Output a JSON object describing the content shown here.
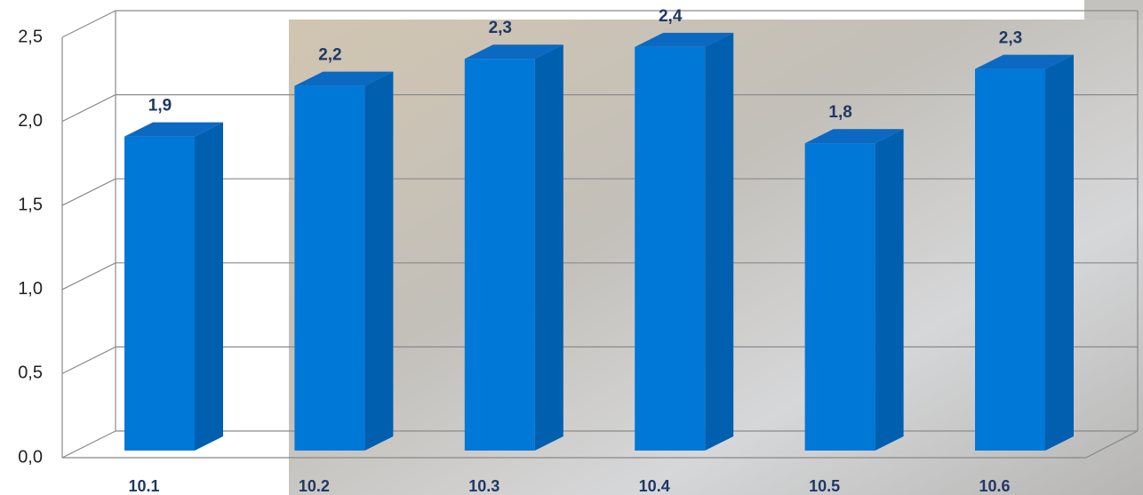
{
  "chart_data": {
    "type": "bar",
    "categories": [
      "10.1",
      "10.2",
      "10.3",
      "10.4",
      "10.5",
      "10.6"
    ],
    "values": [
      1.86,
      2.16,
      2.32,
      2.39,
      1.82,
      2.26
    ],
    "value_labels": [
      "1,9",
      "2,2",
      "2,3",
      "2,4",
      "1,8",
      "2,3"
    ],
    "color": "#0078d7",
    "ylim": [
      0,
      2.5
    ],
    "yticks": [
      {
        "value": 0,
        "label": "0,0"
      },
      {
        "value": 0.5,
        "label": "0,5"
      },
      {
        "value": 1,
        "label": "1,0"
      },
      {
        "value": 1.5,
        "label": "1,5"
      },
      {
        "value": 2,
        "label": "2,0"
      },
      {
        "value": 2.5,
        "label": "2,5"
      }
    ],
    "grid": true
  }
}
